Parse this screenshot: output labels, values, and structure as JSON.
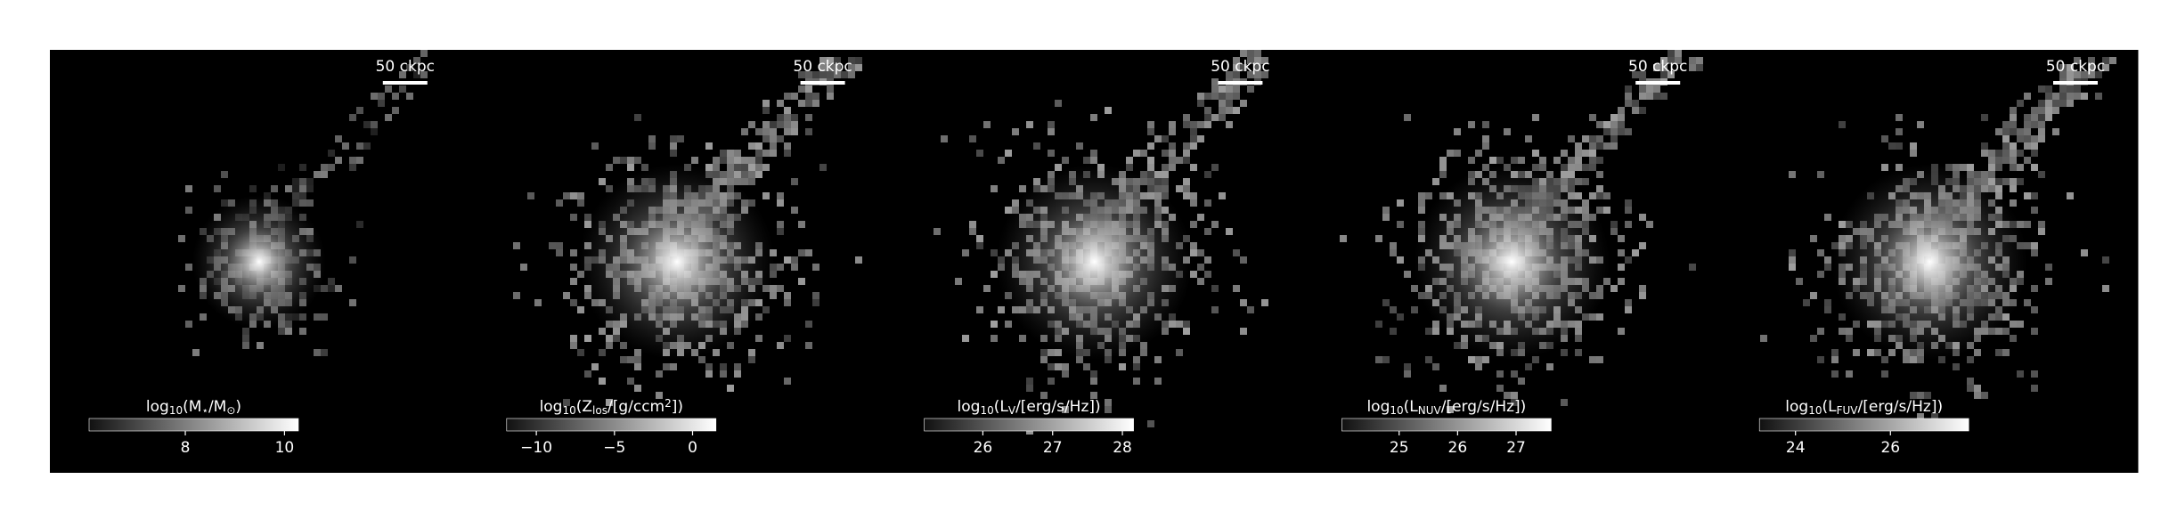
{
  "panels": [
    {
      "scale_label": "50 ckpc",
      "label": [
        "log",
        {
          "sub": "10"
        },
        "(M",
        {
          "sub": "⋆"
        },
        "/M",
        {
          "sub": "⊙"
        },
        ")"
      ],
      "vlim": [
        6.06,
        10.28
      ],
      "ticks": [
        8,
        10
      ]
    },
    {
      "scale_label": "50 ckpc",
      "label": [
        "log",
        {
          "sub": "10"
        },
        "(Z",
        {
          "sub": "los"
        },
        "/[g/ccm",
        {
          "sup": "2"
        },
        "])"
      ],
      "vlim": [
        -11.9,
        1.5
      ],
      "ticks": [
        {
          "value": -10,
          "label": "−10"
        },
        {
          "value": -5,
          "label": "−5"
        },
        0
      ]
    },
    {
      "scale_label": "50 ckpc",
      "label": [
        "log",
        {
          "sub": "10"
        },
        "(L",
        {
          "sub": "V"
        },
        "/[erg/s/Hz])"
      ],
      "vlim": [
        25.16,
        28.16
      ],
      "ticks": [
        26,
        27,
        28
      ]
    },
    {
      "scale_label": "50 ckpc",
      "label": [
        "log",
        {
          "sub": "10"
        },
        "(L",
        {
          "sub": "NUV"
        },
        "/[erg/s/Hz])"
      ],
      "vlim": [
        24.02,
        27.6
      ],
      "ticks": [
        25,
        26,
        27
      ]
    },
    {
      "scale_label": "50 ckpc",
      "label": [
        "log",
        {
          "sub": "10"
        },
        "(L",
        {
          "sub": "FUV"
        },
        "/[erg/s/Hz])"
      ],
      "vlim": [
        23.24,
        27.65
      ],
      "ticks": [
        24,
        26
      ]
    }
  ]
}
